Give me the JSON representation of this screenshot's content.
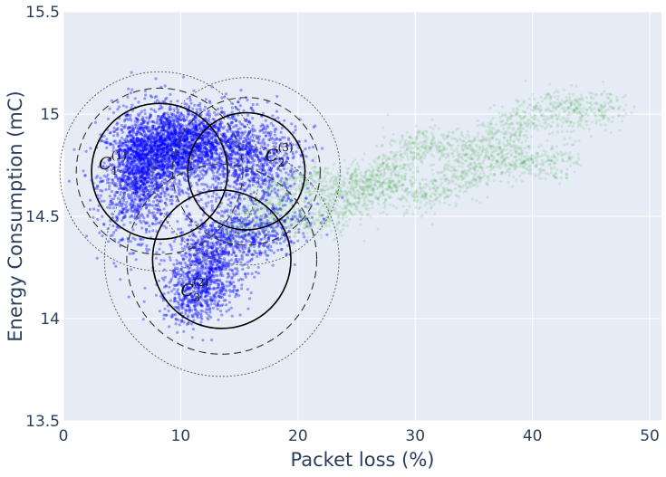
{
  "chart_data": {
    "type": "scatter",
    "title": "",
    "xlabel": "Packet loss (%)",
    "ylabel": "Energy Consumption (mC)",
    "xlim": [
      0,
      51
    ],
    "ylim": [
      13.5,
      15.5
    ],
    "x_ticks": [
      "0",
      "10",
      "20",
      "30",
      "40",
      "50"
    ],
    "y_ticks": [
      "13.5",
      "14",
      "14.5",
      "15",
      "15.5"
    ],
    "x_tick_values": [
      0,
      10,
      20,
      30,
      40,
      50
    ],
    "y_tick_values": [
      13.5,
      14,
      14.5,
      15,
      15.5
    ],
    "grid": true,
    "colors": {
      "background": "#e5ecf6",
      "grid": "#ffffff",
      "blue_points": "#0000ff",
      "green_points": "#2ca02c",
      "circles": "#000000"
    },
    "point_clouds": [
      {
        "color": "blue",
        "blobs": [
          {
            "x": 6.5,
            "y": 14.72,
            "sx": 1.6,
            "sy": 0.15,
            "n": 1400
          },
          {
            "x": 9.5,
            "y": 14.85,
            "sx": 2.0,
            "sy": 0.09,
            "n": 1500
          },
          {
            "x": 13.5,
            "y": 14.82,
            "sx": 2.0,
            "sy": 0.1,
            "n": 700
          },
          {
            "x": 17.0,
            "y": 14.75,
            "sx": 1.8,
            "sy": 0.1,
            "n": 500
          },
          {
            "x": 12.5,
            "y": 14.3,
            "sx": 1.8,
            "sy": 0.12,
            "n": 800
          },
          {
            "x": 11.5,
            "y": 14.12,
            "sx": 1.5,
            "sy": 0.07,
            "n": 400
          },
          {
            "x": 16.5,
            "y": 14.42,
            "sx": 2.2,
            "sy": 0.07,
            "n": 400
          }
        ]
      },
      {
        "color": "green",
        "bands": [
          {
            "x0": 17,
            "y0": 14.57,
            "x1": 47,
            "y1": 15.08,
            "spread": 0.05,
            "n": 1400
          },
          {
            "x0": 14,
            "y0": 14.42,
            "x1": 43,
            "y1": 14.82,
            "spread": 0.05,
            "n": 1400
          }
        ]
      }
    ],
    "circles": [
      {
        "label": "C",
        "sub": "1",
        "sup": "(1)",
        "cx": 8.2,
        "cy": 14.72,
        "r1": 5.8,
        "r2": 7.1,
        "r3": 8.5,
        "label_x": 3.0,
        "label_y": 14.73
      },
      {
        "label": "C",
        "sub": "2",
        "sup": "(3)",
        "cx": 15.6,
        "cy": 14.72,
        "r1": 5.0,
        "r2": 6.3,
        "r3": 8.0,
        "label_x": 17.2,
        "label_y": 14.77
      },
      {
        "label": "C",
        "sub": "3",
        "sup": "(2)",
        "cx": 13.5,
        "cy": 14.29,
        "r1": 5.9,
        "r2": 8.1,
        "r3": 10.0,
        "label_x": 10.0,
        "label_y": 14.11
      }
    ]
  }
}
